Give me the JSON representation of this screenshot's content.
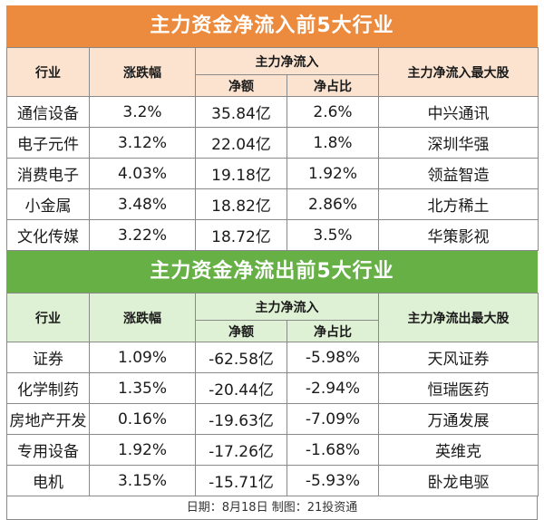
{
  "inflow": {
    "title": "主力资金净流入前5大行业",
    "headers": {
      "industry": "行业",
      "change": "涨跌幅",
      "net_flow": "主力净流入",
      "amount": "净额",
      "ratio": "净占比",
      "top_stock": "主力净流入最大股"
    },
    "rows": [
      {
        "industry": "通信设备",
        "change": "3.2%",
        "amount": "35.84亿",
        "ratio": "2.6%",
        "stock": "中兴通讯"
      },
      {
        "industry": "电子元件",
        "change": "3.12%",
        "amount": "22.04亿",
        "ratio": "1.8%",
        "stock": "深圳华强"
      },
      {
        "industry": "消费电子",
        "change": "4.03%",
        "amount": "19.18亿",
        "ratio": "1.92%",
        "stock": "领益智造"
      },
      {
        "industry": "小金属",
        "change": "3.48%",
        "amount": "18.82亿",
        "ratio": "2.86%",
        "stock": "北方稀土"
      },
      {
        "industry": "文化传媒",
        "change": "3.22%",
        "amount": "18.72亿",
        "ratio": "3.5%",
        "stock": "华策影视"
      }
    ]
  },
  "outflow": {
    "title": "主力资金净流出前5大行业",
    "headers": {
      "industry": "行业",
      "change": "涨跌幅",
      "net_flow": "主力净流入",
      "amount": "净额",
      "ratio": "净占比",
      "top_stock": "主力净流出最大股"
    },
    "rows": [
      {
        "industry": "证券",
        "change": "1.09%",
        "amount": "-62.58亿",
        "ratio": "-5.98%",
        "stock": "天风证券"
      },
      {
        "industry": "化学制药",
        "change": "1.35%",
        "amount": "-20.44亿",
        "ratio": "-2.94%",
        "stock": "恒瑞医药"
      },
      {
        "industry": "房地产开发",
        "change": "0.16%",
        "amount": "-19.63亿",
        "ratio": "-7.09%",
        "stock": "万通发展"
      },
      {
        "industry": "专用设备",
        "change": "1.92%",
        "amount": "-17.26亿",
        "ratio": "-1.68%",
        "stock": "英维克"
      },
      {
        "industry": "电机",
        "change": "3.15%",
        "amount": "-15.71亿",
        "ratio": "-5.93%",
        "stock": "卧龙电驱"
      }
    ]
  },
  "footer": "日期：8月18日 制图：21投资通",
  "colors": {
    "orange_header": "#ec8a3d",
    "orange_light": "#fbe3d0",
    "green_header": "#66b046",
    "green_light": "#def1d4"
  }
}
